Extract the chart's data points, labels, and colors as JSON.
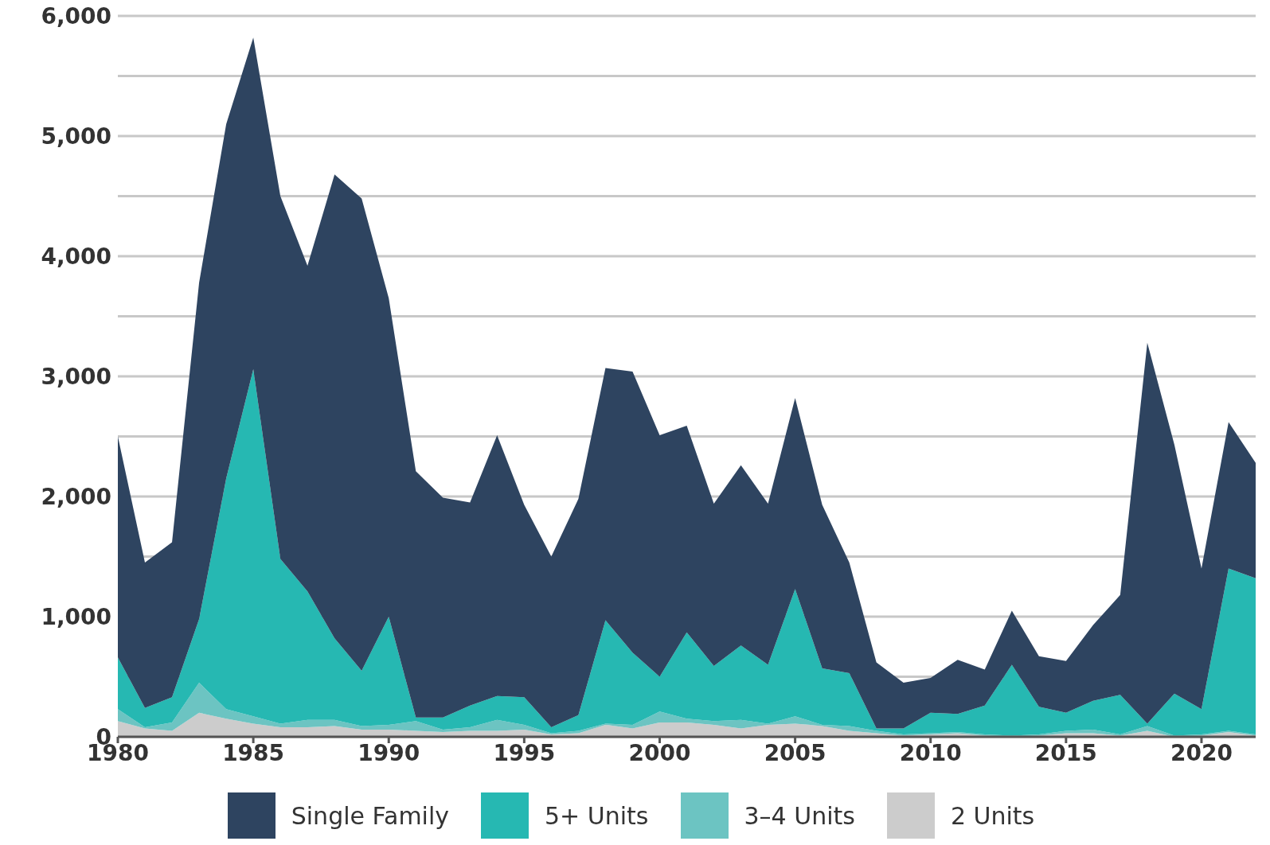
{
  "chart_data": {
    "type": "area",
    "stacked": true,
    "x": [
      1980,
      1981,
      1982,
      1983,
      1984,
      1985,
      1986,
      1987,
      1988,
      1989,
      1990,
      1991,
      1992,
      1993,
      1994,
      1995,
      1996,
      1997,
      1998,
      1999,
      2000,
      2001,
      2002,
      2003,
      2004,
      2005,
      2006,
      2007,
      2008,
      2009,
      2010,
      2011,
      2012,
      2013,
      2014,
      2015,
      2016,
      2017,
      2018,
      2019,
      2020,
      2021,
      2022
    ],
    "series": [
      {
        "name": "2 Units",
        "color": "#cccccc",
        "values": [
          130,
          70,
          50,
          200,
          150,
          110,
          80,
          80,
          90,
          60,
          60,
          50,
          40,
          50,
          50,
          60,
          20,
          30,
          100,
          70,
          120,
          120,
          100,
          70,
          100,
          110,
          90,
          50,
          30,
          10,
          20,
          30,
          10,
          0,
          10,
          30,
          30,
          10,
          50,
          0,
          10,
          40,
          10
        ]
      },
      {
        "name": "3–4 Units",
        "color": "#6cc4c2",
        "values": [
          100,
          10,
          70,
          250,
          80,
          60,
          30,
          60,
          50,
          30,
          40,
          80,
          20,
          30,
          90,
          40,
          10,
          20,
          10,
          30,
          90,
          30,
          30,
          70,
          10,
          60,
          10,
          40,
          20,
          10,
          10,
          10,
          10,
          10,
          10,
          20,
          30,
          10,
          40,
          10,
          10,
          10,
          10
        ]
      },
      {
        "name": "5+ Units",
        "color": "#26b8b2",
        "values": [
          430,
          160,
          210,
          530,
          1920,
          2890,
          1370,
          1070,
          680,
          460,
          900,
          30,
          100,
          180,
          200,
          230,
          50,
          130,
          860,
          600,
          290,
          720,
          460,
          620,
          490,
          1060,
          470,
          440,
          20,
          50,
          170,
          150,
          240,
          590,
          230,
          150,
          240,
          330,
          20,
          350,
          210,
          1350,
          1300
        ]
      },
      {
        "name": "Single Family",
        "color": "#2e4460",
        "values": [
          1840,
          1210,
          1290,
          2800,
          2950,
          2760,
          3020,
          2710,
          3860,
          3930,
          2650,
          2050,
          1830,
          1690,
          2170,
          1600,
          1420,
          1800,
          2100,
          2340,
          2010,
          1720,
          1350,
          1500,
          1340,
          1590,
          1360,
          920,
          550,
          380,
          290,
          450,
          300,
          450,
          420,
          430,
          630,
          830,
          3170,
          2070,
          1170,
          1220,
          960
        ]
      }
    ],
    "xlim": [
      1980,
      2022
    ],
    "xticks": [
      1980,
      1985,
      1990,
      1995,
      2000,
      2005,
      2010,
      2015,
      2020
    ],
    "ylim": [
      0,
      6000
    ],
    "yticks": [
      0,
      {
        "value": 500,
        "label": null
      },
      {
        "value": 1000,
        "label": "1,000"
      },
      {
        "value": 1500,
        "label": null
      },
      {
        "value": 2000,
        "label": "2,000"
      },
      {
        "value": 2500,
        "label": null
      },
      {
        "value": 3000,
        "label": "3,000"
      },
      {
        "value": 3500,
        "label": null
      },
      {
        "value": 4000,
        "label": "4,000"
      },
      {
        "value": 4500,
        "label": null
      },
      {
        "value": 5000,
        "label": "5,000"
      },
      {
        "value": 5500,
        "label": null
      },
      {
        "value": 6000,
        "label": "6,000"
      }
    ],
    "grid": "y",
    "legend": "bottom"
  }
}
